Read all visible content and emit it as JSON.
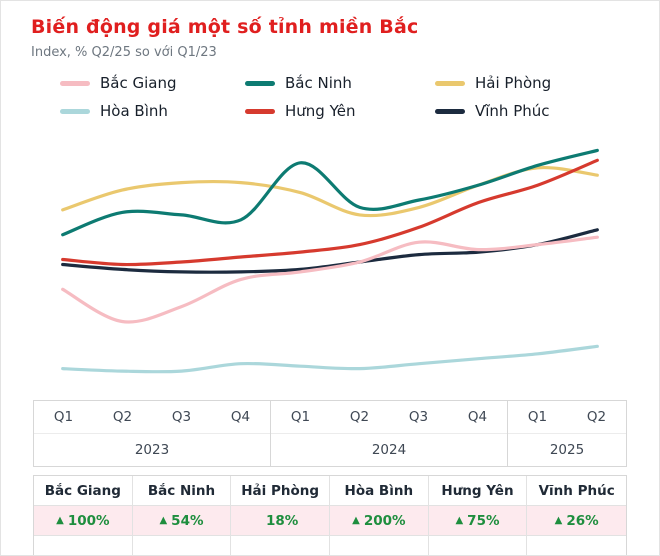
{
  "title": "Biến động giá một số tỉnh miền Bắc",
  "subtitle": "Index, % Q2/25 so với Q1/23",
  "colors": {
    "title_red": "#e01f1f",
    "value_green": "#1e8e3e",
    "value_row_bg": "#fdeaee",
    "border_gray": "#d7d7d7"
  },
  "chart_data": {
    "type": "line",
    "title": "Biến động giá một số tỉnh miền Bắc",
    "xlabel": "",
    "ylabel": "Index, % Q2/25 so với Q1/23",
    "categories": [
      "Q1 2023",
      "Q2 2023",
      "Q3 2023",
      "Q4 2023",
      "Q1 2024",
      "Q2 2024",
      "Q3 2024",
      "Q4 2024",
      "Q1 2025",
      "Q2 2025"
    ],
    "series": [
      {
        "name": "Bắc Giang",
        "color": "#f6bcc2",
        "values": [
          39,
          26,
          32,
          43,
          46,
          50,
          58,
          55,
          57,
          60
        ]
      },
      {
        "name": "Bắc Ninh",
        "color": "#0d7b72",
        "values": [
          61,
          70,
          69,
          67,
          90,
          72,
          75,
          81,
          89,
          95
        ]
      },
      {
        "name": "Hải Phòng",
        "color": "#eac86e",
        "values": [
          71,
          79,
          82,
          82,
          78,
          69,
          72,
          81,
          88,
          85
        ]
      },
      {
        "name": "Hòa Bình",
        "color": "#abd7db",
        "values": [
          7,
          6,
          6,
          9,
          8,
          7,
          9,
          11,
          13,
          16
        ]
      },
      {
        "name": "Hưng Yên",
        "color": "#d63a2e",
        "values": [
          51,
          49,
          50,
          52,
          54,
          57,
          64,
          74,
          81,
          91
        ]
      },
      {
        "name": "Vĩnh Phúc",
        "color": "#1c2b3f",
        "values": [
          49,
          47,
          46,
          46,
          47,
          50,
          53,
          54,
          57,
          63
        ]
      }
    ],
    "ylim": [
      0,
      100
    ],
    "grid": false,
    "y_axis_visible": false,
    "legend_position": "top",
    "draw_order": [
      3,
      5,
      0,
      2,
      1,
      4
    ],
    "note": "No numeric y-axis shown in original; y values are relative positions estimated from the plotted lines."
  },
  "xaxis": {
    "groups": [
      {
        "year": "2023",
        "quarters": [
          "Q1",
          "Q2",
          "Q3",
          "Q4"
        ]
      },
      {
        "year": "2024",
        "quarters": [
          "Q1",
          "Q2",
          "Q3",
          "Q4"
        ]
      },
      {
        "year": "2025",
        "quarters": [
          "Q1",
          "Q2"
        ]
      }
    ]
  },
  "summary": {
    "columns": [
      {
        "name": "Bắc Giang",
        "arrow": "▲",
        "value": "100%"
      },
      {
        "name": "Bắc Ninh",
        "arrow": "▲",
        "value": "54%"
      },
      {
        "name": "Hải Phòng",
        "arrow": "",
        "value": "18%"
      },
      {
        "name": "Hòa Bình",
        "arrow": "▲",
        "value": "200%"
      },
      {
        "name": "Hưng Yên",
        "arrow": "▲",
        "value": "75%"
      },
      {
        "name": "Vĩnh Phúc",
        "arrow": "▲",
        "value": "26%"
      }
    ]
  }
}
